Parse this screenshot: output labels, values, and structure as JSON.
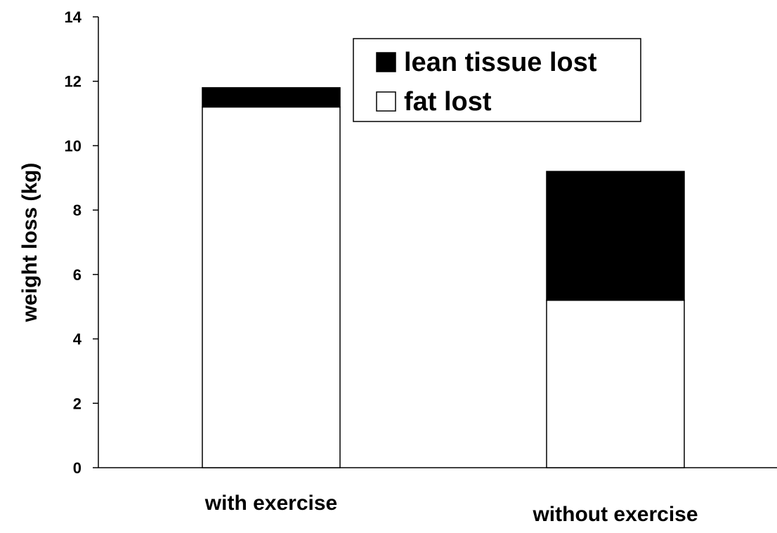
{
  "chart_data": {
    "type": "bar",
    "stacked": true,
    "categories": [
      "with exercise",
      "without exercise"
    ],
    "series": [
      {
        "name": "fat lost",
        "values": [
          11.2,
          5.2
        ]
      },
      {
        "name": "lean tissue lost",
        "values": [
          0.6,
          4.0
        ]
      }
    ],
    "xlabel": "",
    "ylabel": "weight loss (kg)",
    "ylim": [
      0,
      14
    ],
    "yticks": [
      0,
      2,
      4,
      6,
      8,
      10,
      12,
      14
    ],
    "ytick_labels": [
      "0",
      "2",
      "4",
      "6",
      "8",
      "10",
      "12",
      "14"
    ],
    "grid": false,
    "legend": {
      "placement": "top-center",
      "entries": [
        {
          "label": "lean tissue lost",
          "color": "#000000"
        },
        {
          "label": "fat lost",
          "color": "#ffffff"
        }
      ]
    },
    "colors": {
      "fat lost": "#ffffff",
      "lean tissue lost": "#000000"
    }
  }
}
